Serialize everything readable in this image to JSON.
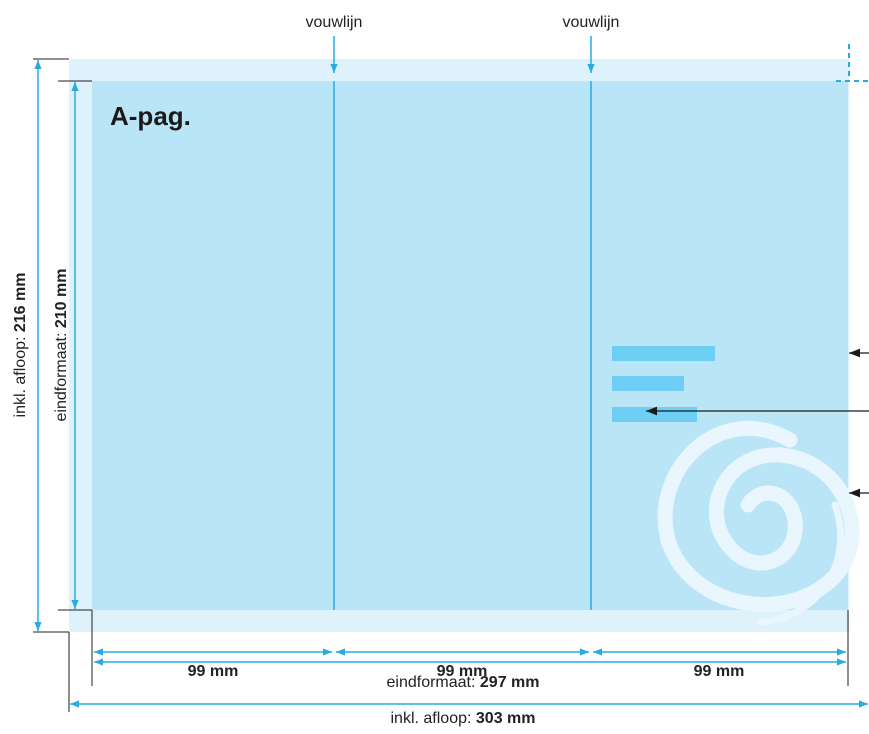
{
  "colors": {
    "bleed": "#ddf2fb",
    "trim": "#b9e5f7",
    "dimension": "#29abe2",
    "text_block": "#6dcff6",
    "swirl": "#e9f6fd",
    "pointer": "#1a1a1a",
    "label": "#222222"
  },
  "fold_label": "vouwlijn",
  "page_label": "A-pag.",
  "panels": [
    {
      "width_value": "99",
      "width_unit": "mm"
    },
    {
      "width_value": "99",
      "width_unit": "mm"
    },
    {
      "width_value": "99",
      "width_unit": "mm"
    }
  ],
  "horizontal": {
    "trim": {
      "prefix": "eindformaat: ",
      "value": "297 mm"
    },
    "bleed": {
      "prefix": "inkl. afloop: ",
      "value": "303 mm"
    }
  },
  "vertical": {
    "trim": {
      "prefix": "eindformaat: ",
      "value": "210 mm"
    },
    "bleed": {
      "prefix": "inkl. afloop: ",
      "value": "216 mm"
    }
  },
  "text_block_fill": [
    1.0,
    0.7,
    0.83
  ],
  "icons": [
    "crop-mark-icon",
    "swirl-icon",
    "pointer-arrow-icon"
  ]
}
